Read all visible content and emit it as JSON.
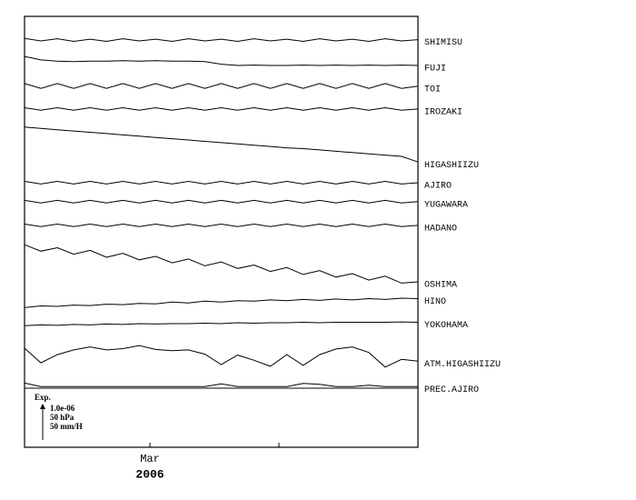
{
  "chart_data": {
    "type": "line",
    "x": [
      0,
      1,
      2,
      3,
      4,
      5,
      6,
      7,
      8,
      9,
      10,
      11,
      12,
      13,
      14,
      15,
      16,
      17,
      18,
      19,
      20,
      21,
      22,
      23,
      24
    ],
    "xlim": [
      0,
      24
    ],
    "xticks": [
      {
        "value": 7.65,
        "label": "Mar"
      },
      {
        "value": 15.52,
        "label": null
      }
    ],
    "year_label": "2006",
    "ylim": [
      0,
      100
    ],
    "scale_legend": [
      "Exp.",
      "1.0e-06",
      "50 hPa",
      "50 mm/H"
    ],
    "series": [
      {
        "name": "SHIMISU",
        "color": "#000",
        "values": [
          94.9,
          94.3,
          94.8,
          94.2,
          94.7,
          94.2,
          94.8,
          94.3,
          94.7,
          94.2,
          94.8,
          94.3,
          94.7,
          94.2,
          94.8,
          94.3,
          94.7,
          94.2,
          94.8,
          94.3,
          94.7,
          94.2,
          94.8,
          94.3,
          94.6
        ]
      },
      {
        "name": "FUJI",
        "color": "#000",
        "values": [
          90.7,
          89.9,
          89.6,
          89.5,
          89.6,
          89.6,
          89.7,
          89.6,
          89.7,
          89.6,
          89.6,
          89.5,
          88.9,
          88.6,
          88.7,
          88.6,
          88.6,
          88.7,
          88.6,
          88.7,
          88.6,
          88.7,
          88.6,
          88.7,
          88.6
        ]
      },
      {
        "name": "TOI",
        "color": "#000",
        "values": [
          84.4,
          83.3,
          84.4,
          83.3,
          84.4,
          83.3,
          84.4,
          83.3,
          84.4,
          83.3,
          84.4,
          83.3,
          84.4,
          83.3,
          84.4,
          83.3,
          84.4,
          83.3,
          84.4,
          83.3,
          84.4,
          83.3,
          84.4,
          83.3,
          83.8
        ]
      },
      {
        "name": "IROZAKI",
        "color": "#000",
        "values": [
          78.8,
          78.2,
          78.8,
          78.2,
          78.8,
          78.2,
          78.8,
          78.2,
          78.8,
          78.2,
          78.8,
          78.2,
          78.8,
          78.2,
          78.8,
          78.2,
          78.8,
          78.2,
          78.8,
          78.2,
          78.8,
          78.2,
          78.8,
          78.2,
          78.5
        ]
      },
      {
        "name": "HIGASHIIZU",
        "color": "#000",
        "values": [
          74.3,
          74.0,
          73.7,
          73.4,
          73.1,
          72.8,
          72.5,
          72.2,
          71.9,
          71.6,
          71.3,
          71.0,
          70.7,
          70.4,
          70.1,
          69.8,
          69.5,
          69.3,
          69.0,
          68.7,
          68.4,
          68.1,
          67.8,
          67.5,
          66.2
        ]
      },
      {
        "name": "AJIRO",
        "color": "#000",
        "values": [
          61.7,
          61.1,
          61.7,
          61.1,
          61.7,
          61.1,
          61.7,
          61.1,
          61.7,
          61.1,
          61.7,
          61.1,
          61.7,
          61.1,
          61.7,
          61.1,
          61.7,
          61.1,
          61.7,
          61.1,
          61.7,
          61.1,
          61.7,
          61.1,
          61.4
        ]
      },
      {
        "name": "YUGAWARA",
        "color": "#000",
        "values": [
          57.3,
          56.7,
          57.3,
          56.7,
          57.3,
          56.7,
          57.3,
          56.7,
          57.3,
          56.7,
          57.3,
          56.7,
          57.3,
          56.7,
          57.3,
          56.7,
          57.3,
          56.7,
          57.3,
          56.7,
          57.3,
          56.7,
          57.3,
          56.7,
          57.0
        ]
      },
      {
        "name": "HADANO",
        "color": "#000",
        "values": [
          51.8,
          51.2,
          51.8,
          51.2,
          51.8,
          51.2,
          51.8,
          51.2,
          51.8,
          51.2,
          51.8,
          51.2,
          51.8,
          51.2,
          51.8,
          51.2,
          51.8,
          51.2,
          51.8,
          51.2,
          51.8,
          51.2,
          51.8,
          51.2,
          51.5
        ]
      },
      {
        "name": "OSHIMA",
        "color": "#000",
        "values": [
          47.0,
          45.5,
          46.3,
          44.8,
          45.7,
          44.1,
          45.0,
          43.5,
          44.3,
          42.8,
          43.7,
          42.1,
          43.0,
          41.5,
          42.3,
          40.8,
          41.7,
          40.1,
          41.0,
          39.5,
          40.3,
          38.8,
          39.7,
          38.1,
          38.4
        ]
      },
      {
        "name": "HINO",
        "color": "#000",
        "values": [
          32.4,
          32.8,
          32.7,
          33.0,
          32.9,
          33.2,
          33.1,
          33.4,
          33.3,
          33.7,
          33.5,
          33.9,
          33.7,
          34.0,
          33.9,
          34.2,
          34.0,
          34.3,
          34.1,
          34.4,
          34.2,
          34.5,
          34.3,
          34.6,
          34.5
        ]
      },
      {
        "name": "YOKOHAMA",
        "color": "#000",
        "values": [
          28.2,
          28.4,
          28.3,
          28.5,
          28.4,
          28.6,
          28.5,
          28.7,
          28.6,
          28.7,
          28.7,
          28.8,
          28.7,
          28.9,
          28.8,
          28.9,
          28.9,
          29.0,
          28.9,
          29.0,
          29.0,
          29.0,
          29.0,
          29.1,
          29.0
        ]
      },
      {
        "name": "ATM.HIGASHIIZU",
        "color": "#000",
        "values": [
          23.0,
          19.6,
          21.5,
          22.6,
          23.3,
          22.6,
          22.9,
          23.6,
          22.7,
          22.4,
          22.6,
          21.6,
          19.2,
          21.4,
          20.2,
          18.8,
          21.5,
          19.0,
          21.5,
          22.8,
          23.3,
          22.0,
          18.6,
          20.4,
          20.0
        ]
      },
      {
        "name": "PREC.AJIRO",
        "color": "#000",
        "values": [
          14.9,
          14.1,
          14.1,
          14.1,
          14.1,
          14.1,
          14.1,
          14.1,
          14.1,
          14.1,
          14.1,
          14.1,
          14.7,
          14.1,
          14.1,
          14.1,
          14.1,
          14.8,
          14.6,
          14.1,
          14.1,
          14.4,
          14.1,
          14.1,
          14.1
        ]
      }
    ]
  }
}
